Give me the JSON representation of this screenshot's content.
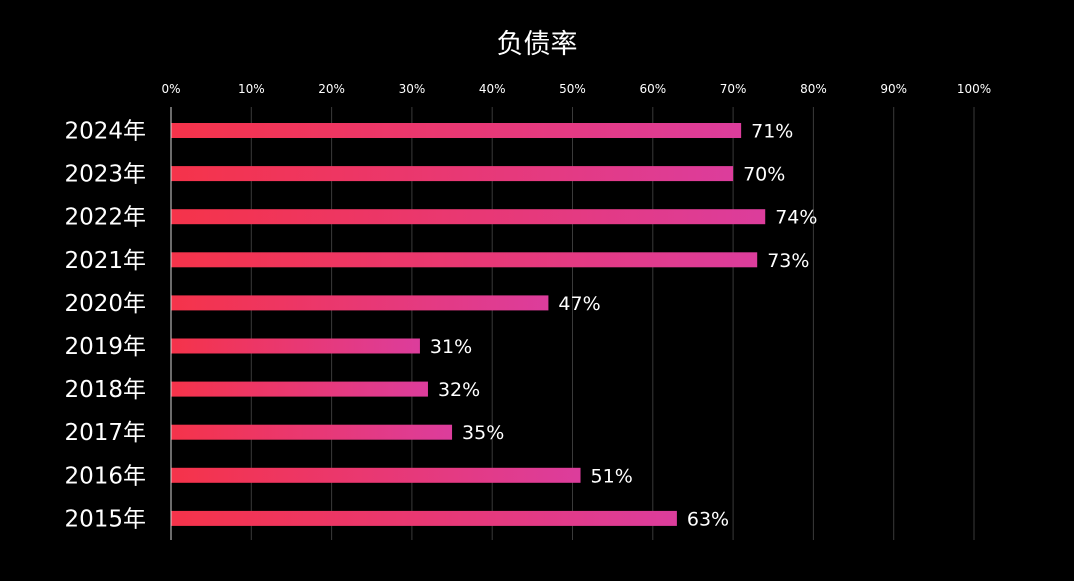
{
  "chart_data": {
    "type": "bar",
    "orientation": "horizontal",
    "title": "负债率",
    "categories": [
      "2024年",
      "2023年",
      "2022年",
      "2021年",
      "2020年",
      "2019年",
      "2018年",
      "2017年",
      "2016年",
      "2015年"
    ],
    "series": [
      {
        "values": [
          71,
          70,
          74,
          73,
          47,
          31,
          32,
          35,
          51,
          63
        ],
        "data_labels": [
          "71%",
          "70%",
          "74%",
          "73%",
          "47%",
          "31%",
          "32%",
          "35%",
          "51%",
          "63%"
        ]
      }
    ],
    "xlim": [
      0,
      100
    ],
    "x_ticks": [
      "0%",
      "10%",
      "20%",
      "30%",
      "40%",
      "50%",
      "60%",
      "70%",
      "80%",
      "90%",
      "100%"
    ],
    "x_axis_position": "top",
    "grid": true,
    "legend": "none",
    "colors": {
      "background": "#000000",
      "bar_gradient_start": "#f5334a",
      "bar_gradient_end": "#dc3d9c",
      "text": "#ffffff",
      "grid": "#3a3a3a",
      "axis": "#d9d9d9"
    }
  }
}
